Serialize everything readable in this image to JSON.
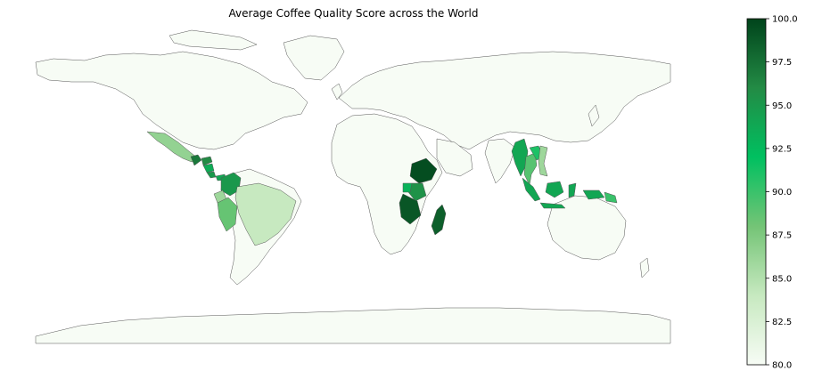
{
  "title": "Average Coffee Quality Score across the World",
  "colormap": {
    "name": "Greens",
    "min": 80.0,
    "max": 100.0,
    "stops": [
      "#f7fcf5",
      "#c7e9c0",
      "#74c476",
      "#00c060",
      "#238b45",
      "#00441b"
    ],
    "no_data_fill": "#f7fcf5",
    "border_color": "#555555"
  },
  "colorbar": {
    "ticks": [
      "80.0",
      "82.5",
      "85.0",
      "87.5",
      "90.0",
      "92.5",
      "95.0",
      "97.5",
      "100.0"
    ],
    "tick_values": [
      80.0,
      82.5,
      85.0,
      87.5,
      90.0,
      92.5,
      95.0,
      97.5,
      100.0
    ]
  },
  "regions": [
    {
      "name": "Mexico",
      "value": 86.5
    },
    {
      "name": "Guatemala",
      "value": 97.0
    },
    {
      "name": "Honduras",
      "value": 96.0
    },
    {
      "name": "Nicaragua",
      "value": 93.5
    },
    {
      "name": "Costa Rica",
      "value": 95.0
    },
    {
      "name": "Panama",
      "value": 94.0
    },
    {
      "name": "Colombia",
      "value": 95.0
    },
    {
      "name": "Ecuador",
      "value": 86.0
    },
    {
      "name": "Peru",
      "value": 88.5
    },
    {
      "name": "Brazil",
      "value": 84.0
    },
    {
      "name": "Ethiopia",
      "value": 99.5
    },
    {
      "name": "Kenya",
      "value": 95.5
    },
    {
      "name": "Uganda",
      "value": 93.0
    },
    {
      "name": "Tanzania",
      "value": 99.0
    },
    {
      "name": "Madagascar",
      "value": 98.5
    },
    {
      "name": "Myanmar",
      "value": 94.0
    },
    {
      "name": "Thailand",
      "value": 89.0
    },
    {
      "name": "Laos",
      "value": 91.0
    },
    {
      "name": "Vietnam",
      "value": 86.0
    },
    {
      "name": "Indonesia",
      "value": 94.0
    },
    {
      "name": "Papua New Guinea",
      "value": 90.0
    }
  ]
}
